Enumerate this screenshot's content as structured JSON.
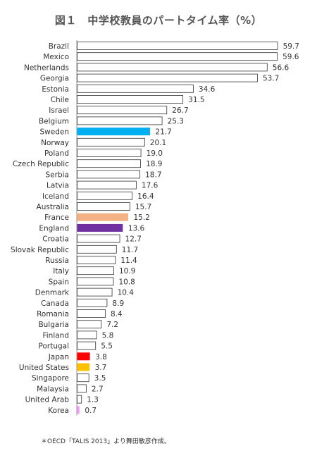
{
  "title": "図１　中学校教員のパートタイム率（%）",
  "note": "＊OECD「TALIS 2013」より舞田敏彦作成。",
  "chart_data": {
    "type": "bar",
    "orientation": "horizontal",
    "title": "図１　中学校教員のパートタイム率（%）",
    "xlabel": "",
    "ylabel": "",
    "xlim": [
      0,
      60
    ],
    "grid": false,
    "legend": "none",
    "categories": [
      "Brazil",
      "Mexico",
      "Netherlands",
      "Georgia",
      "Estonia",
      "Chile",
      "Israel",
      "Belgium",
      "Sweden",
      "Norway",
      "Poland",
      "Czech Republic",
      "Serbia",
      "Latvia",
      "Iceland",
      "Australia",
      "France",
      "England",
      "Croatia",
      "Slovak Republic",
      "Russia",
      "Italy",
      "Spain",
      "Denmark",
      "Canada",
      "Romania",
      "Bulgaria",
      "Finland",
      "Portugal",
      "Japan",
      "United States",
      "Singapore",
      "Malaysia",
      "United Arab",
      "Korea"
    ],
    "values": [
      59.7,
      59.6,
      56.6,
      53.7,
      34.6,
      31.5,
      26.7,
      25.3,
      21.7,
      20.1,
      19.0,
      18.9,
      18.7,
      17.6,
      16.4,
      15.7,
      15.2,
      13.6,
      12.7,
      11.7,
      11.4,
      10.9,
      10.8,
      10.4,
      8.9,
      8.4,
      7.2,
      5.8,
      5.5,
      3.8,
      3.7,
      3.5,
      2.7,
      1.3,
      0.7
    ],
    "value_labels": [
      "59.7",
      "59.6",
      "56.6",
      "53.7",
      "34.6",
      "31.5",
      "26.7",
      "25.3",
      "21.7",
      "20.1",
      "19.0",
      "18.9",
      "18.7",
      "17.6",
      "16.4",
      "15.7",
      "15.2",
      "13.6",
      "12.7",
      "11.7",
      "11.4",
      "10.9",
      "10.8",
      "10.4",
      "8.9",
      "8.4",
      "7.2",
      "5.8",
      "5.5",
      "3.8",
      "3.7",
      "3.5",
      "2.7",
      "1.3",
      "0.7"
    ],
    "default_fill": "#ffffff",
    "default_stroke": "#333333",
    "highlight_colors": {
      "Sweden": "#00b0f0",
      "France": "#f4b183",
      "England": "#7030a0",
      "Japan": "#ff0000",
      "United States": "#ffc000",
      "Korea": "#ff99ff"
    }
  }
}
